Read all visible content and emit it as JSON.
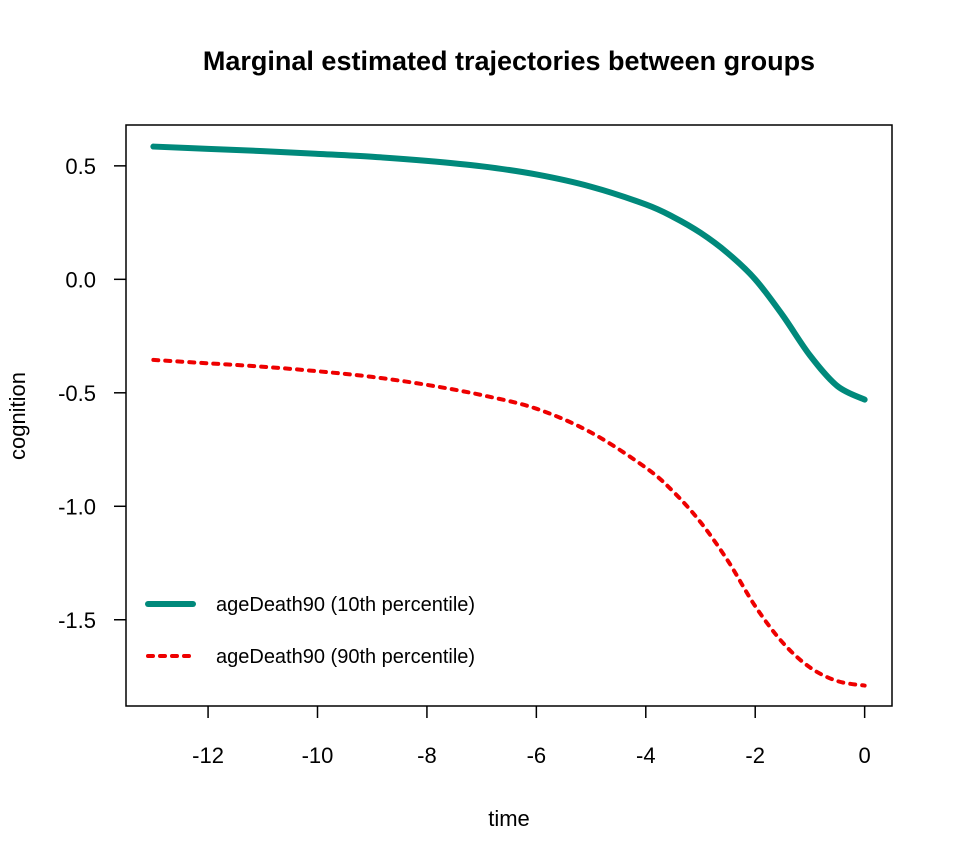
{
  "chart_data": {
    "type": "line",
    "title": "Marginal estimated trajectories between groups",
    "xlabel": "time",
    "ylabel": "cognition",
    "xlim": [
      -13.5,
      0.5
    ],
    "ylim": [
      -1.88,
      0.68
    ],
    "xticks": [
      -12,
      -10,
      -8,
      -6,
      -4,
      -2,
      0
    ],
    "xtick_labels": [
      "-12",
      "-10",
      "-8",
      "-6",
      "-4",
      "-2",
      "0"
    ],
    "yticks": [
      0.5,
      0.0,
      -0.5,
      -1.0,
      -1.5
    ],
    "ytick_labels": [
      "0.5",
      "0.0",
      "-0.5",
      "-1.0",
      "-1.5"
    ],
    "grid": false,
    "legend_position": "bottom-left",
    "series": [
      {
        "name": "ageDeath90 (10th percentile)",
        "color": "#00897b",
        "style": "solid",
        "x": [
          -13,
          -12,
          -11,
          -10,
          -9,
          -8,
          -7,
          -6,
          -5,
          -4,
          -3.5,
          -3,
          -2.5,
          -2,
          -1.5,
          -1,
          -0.5,
          0
        ],
        "y": [
          0.585,
          0.575,
          0.565,
          0.553,
          0.54,
          0.522,
          0.498,
          0.462,
          0.408,
          0.33,
          0.275,
          0.205,
          0.115,
          0.0,
          -0.158,
          -0.335,
          -0.47,
          -0.53
        ]
      },
      {
        "name": "ageDeath90 (90th percentile)",
        "color": "#ee0000",
        "style": "dotted",
        "x": [
          -13,
          -12,
          -11,
          -10,
          -9,
          -8,
          -7,
          -6,
          -5,
          -4,
          -3.5,
          -3,
          -2.5,
          -2,
          -1.5,
          -1,
          -0.5,
          0
        ],
        "y": [
          -0.355,
          -0.37,
          -0.385,
          -0.405,
          -0.43,
          -0.465,
          -0.51,
          -0.57,
          -0.675,
          -0.83,
          -0.935,
          -1.07,
          -1.24,
          -1.44,
          -1.6,
          -1.71,
          -1.77,
          -1.79
        ]
      }
    ]
  }
}
